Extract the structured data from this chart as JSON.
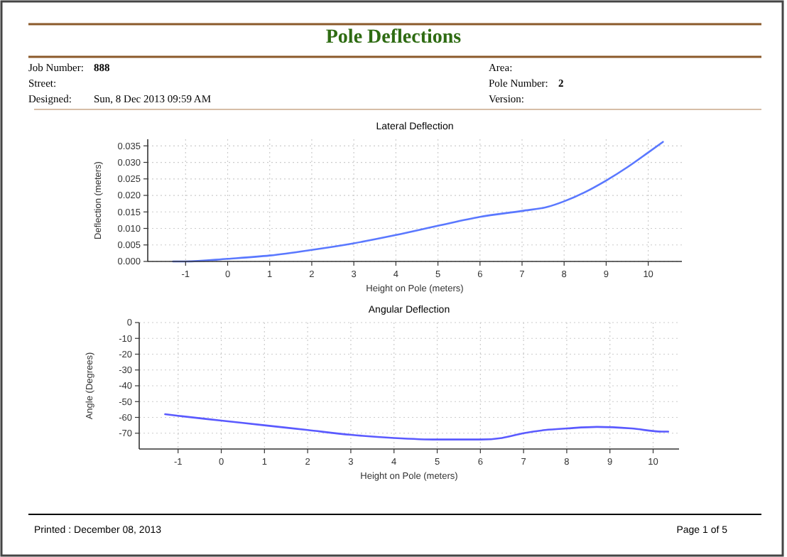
{
  "chart_data": [
    {
      "type": "line",
      "title": "Lateral Deflection",
      "xlabel": "Height on Pole (meters)",
      "ylabel": "Deflection (meters)",
      "annotations": [
        "Pole Deflections",
        "Job Number:",
        "888",
        "Street:",
        "Designed:",
        "Sun, 8 Dec 2013 09:59 AM",
        "Area:",
        "Pole Number:",
        "2",
        "Version:"
      ],
      "xlim": [
        -1.9,
        10.8
      ],
      "xticks": [
        -1,
        0,
        1,
        2,
        3,
        4,
        5,
        6,
        7,
        8,
        9,
        10
      ],
      "ylim": [
        0,
        0.037
      ],
      "yticks": [
        {
          "value": 0,
          "label": "0.000"
        },
        {
          "value": 0.005,
          "label": "0.005"
        },
        {
          "value": 0.01,
          "label": "0.010"
        },
        {
          "value": 0.015,
          "label": "0.015"
        },
        {
          "value": 0.02,
          "label": "0.020"
        },
        {
          "value": 0.025,
          "label": "0.025"
        },
        {
          "value": 0.03,
          "label": "0.030"
        },
        {
          "value": 0.035,
          "label": "0.035"
        }
      ],
      "grid": true,
      "marker": "none",
      "line_style": "solid",
      "series": [
        {
          "color": "#5a78ff",
          "x": [
            -1.3,
            -1,
            0,
            1,
            2,
            3,
            4,
            5,
            6,
            7,
            7.6,
            8,
            8.5,
            9,
            9.5,
            10,
            10.35
          ],
          "values": [
            0,
            0,
            0.0008,
            0.0018,
            0.0035,
            0.0055,
            0.008,
            0.0108,
            0.0135,
            0.0153,
            0.0165,
            0.0182,
            0.021,
            0.0245,
            0.0285,
            0.033,
            0.0362
          ]
        }
      ]
    },
    {
      "type": "line",
      "title": "Angular Deflection",
      "xlabel": "Height on Pole (meters)",
      "ylabel": "Angle (Degrees)",
      "annotations": [
        "Printed :  December 08, 2013",
        "Page 1 of 5"
      ],
      "xlim": [
        -1.9,
        10.6
      ],
      "xticks": [
        -1,
        0,
        1,
        2,
        3,
        4,
        5,
        6,
        7,
        8,
        9,
        10
      ],
      "ylim": [
        -80,
        0
      ],
      "yticks": [
        0,
        -10,
        -20,
        -30,
        -40,
        -50,
        -60,
        -70
      ],
      "grid": true,
      "marker": "none",
      "line_style": "solid",
      "series": [
        {
          "color": "#5a5aff",
          "x": [
            -1.3,
            -1,
            0,
            1,
            2,
            3,
            4,
            5,
            6,
            6.5,
            7,
            7.5,
            8,
            8.7,
            9.5,
            10.2,
            10.35
          ],
          "values": [
            -58,
            -59,
            -62,
            -65,
            -68,
            -71,
            -73,
            -74,
            -74,
            -73,
            -70,
            -68,
            -67,
            -66,
            -67,
            -69,
            -69
          ]
        }
      ]
    }
  ]
}
